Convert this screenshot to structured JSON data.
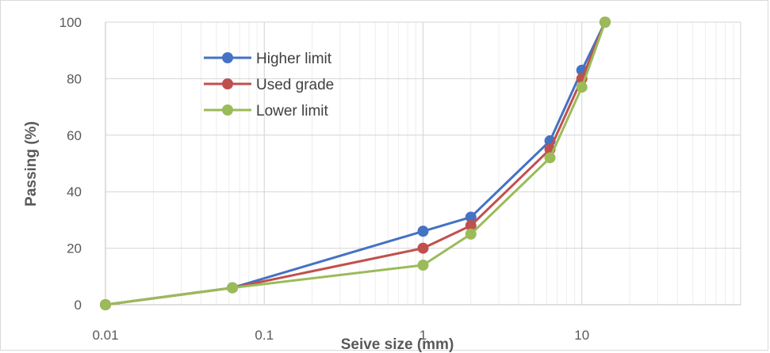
{
  "chart_data": {
    "type": "line",
    "title": "",
    "xlabel": "Seive size (mm)",
    "ylabel": "Passing (%)",
    "x_scale": "log",
    "xlim": [
      0.01,
      100
    ],
    "ylim": [
      0,
      100
    ],
    "x_ticks": [
      {
        "value": 0.01,
        "label": "0.01"
      },
      {
        "value": 0.1,
        "label": "0.1"
      },
      {
        "value": 1,
        "label": "1"
      },
      {
        "value": 10,
        "label": "10"
      }
    ],
    "y_ticks": [
      {
        "value": 0,
        "label": "0"
      },
      {
        "value": 20,
        "label": "20"
      },
      {
        "value": 40,
        "label": "40"
      },
      {
        "value": 60,
        "label": "60"
      },
      {
        "value": 80,
        "label": "80"
      },
      {
        "value": 100,
        "label": "100"
      }
    ],
    "grid": {
      "major": true,
      "minor_x": true
    },
    "legend_position": "top-left",
    "series": [
      {
        "name": "Higher limit",
        "color": "#4472c4",
        "x": [
          0.01,
          0.063,
          1,
          2,
          6.3,
          10,
          14
        ],
        "y": [
          0,
          6,
          26,
          31,
          58,
          83,
          100
        ]
      },
      {
        "name": "Used grade",
        "color": "#c0504d",
        "x": [
          0.01,
          0.063,
          1,
          2,
          6.3,
          10,
          14
        ],
        "y": [
          0,
          6,
          20,
          28,
          55,
          80,
          100
        ]
      },
      {
        "name": "Lower limit",
        "color": "#9bbb59",
        "x": [
          0.01,
          0.063,
          1,
          2,
          6.3,
          10,
          14
        ],
        "y": [
          0,
          6,
          14,
          25,
          52,
          77,
          100
        ]
      }
    ]
  }
}
